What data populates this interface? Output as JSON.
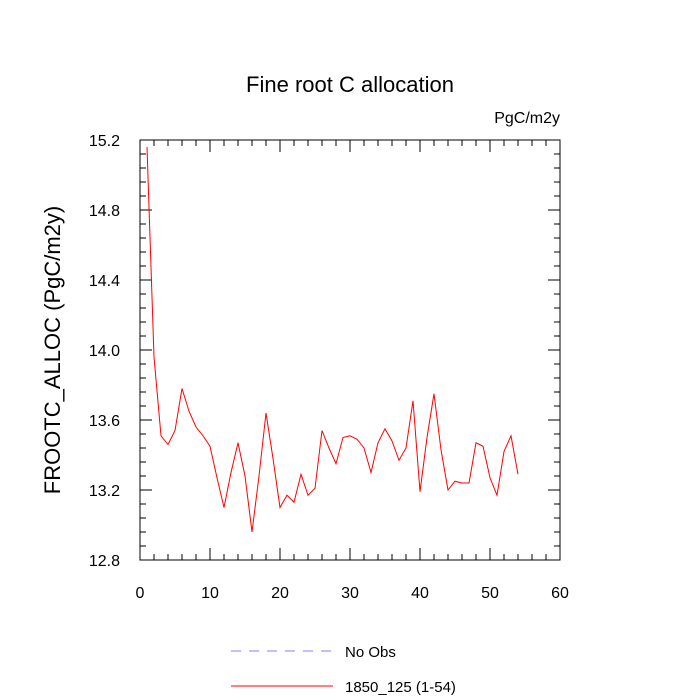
{
  "chart_data": {
    "type": "line",
    "title": "Fine root C allocation",
    "units_label": "PgC/m2y",
    "ylabel": "FROOTC_ALLOC  (PgC/m2y)",
    "xlabel": "",
    "xlim": [
      0,
      60
    ],
    "ylim": [
      12.8,
      15.2
    ],
    "x_ticks": [
      0,
      10,
      20,
      30,
      40,
      50,
      60
    ],
    "y_ticks": [
      12.8,
      13.2,
      13.6,
      14.0,
      14.4,
      14.8,
      15.2
    ],
    "x_tick_labels": [
      "0",
      "10",
      "20",
      "30",
      "40",
      "50",
      "60"
    ],
    "y_tick_labels": [
      "12.8",
      "13.2",
      "13.6",
      "14.0",
      "14.4",
      "14.8",
      "15.2"
    ],
    "grid": false,
    "legend_position": "bottom",
    "legend": [
      {
        "label": "No Obs",
        "color": "#8080ff",
        "style": "dashed"
      },
      {
        "label": "1850_125 (1-54)",
        "color": "#ff0000",
        "style": "solid"
      }
    ],
    "series": [
      {
        "name": "1850_125 (1-54)",
        "color": "#ff0000",
        "x": [
          1,
          2,
          3,
          4,
          5,
          6,
          7,
          8,
          9,
          10,
          11,
          12,
          13,
          14,
          15,
          16,
          17,
          18,
          19,
          20,
          21,
          22,
          23,
          24,
          25,
          26,
          27,
          28,
          29,
          30,
          31,
          32,
          33,
          34,
          35,
          36,
          37,
          38,
          39,
          40,
          41,
          42,
          43,
          44,
          45,
          46,
          47,
          48,
          49,
          50,
          51,
          52,
          53,
          54
        ],
        "values": [
          15.16,
          13.96,
          13.51,
          13.46,
          13.54,
          13.78,
          13.65,
          13.56,
          13.51,
          13.45,
          13.27,
          13.1,
          13.3,
          13.47,
          13.28,
          12.96,
          13.28,
          13.64,
          13.38,
          13.1,
          13.17,
          13.13,
          13.29,
          13.17,
          13.21,
          13.54,
          13.44,
          13.35,
          13.5,
          13.51,
          13.49,
          13.44,
          13.3,
          13.47,
          13.55,
          13.48,
          13.37,
          13.44,
          13.71,
          13.19,
          13.5,
          13.75,
          13.43,
          13.2,
          13.25,
          13.24,
          13.24,
          13.47,
          13.45,
          13.27,
          13.17,
          13.42,
          13.51,
          13.29
        ]
      }
    ]
  }
}
